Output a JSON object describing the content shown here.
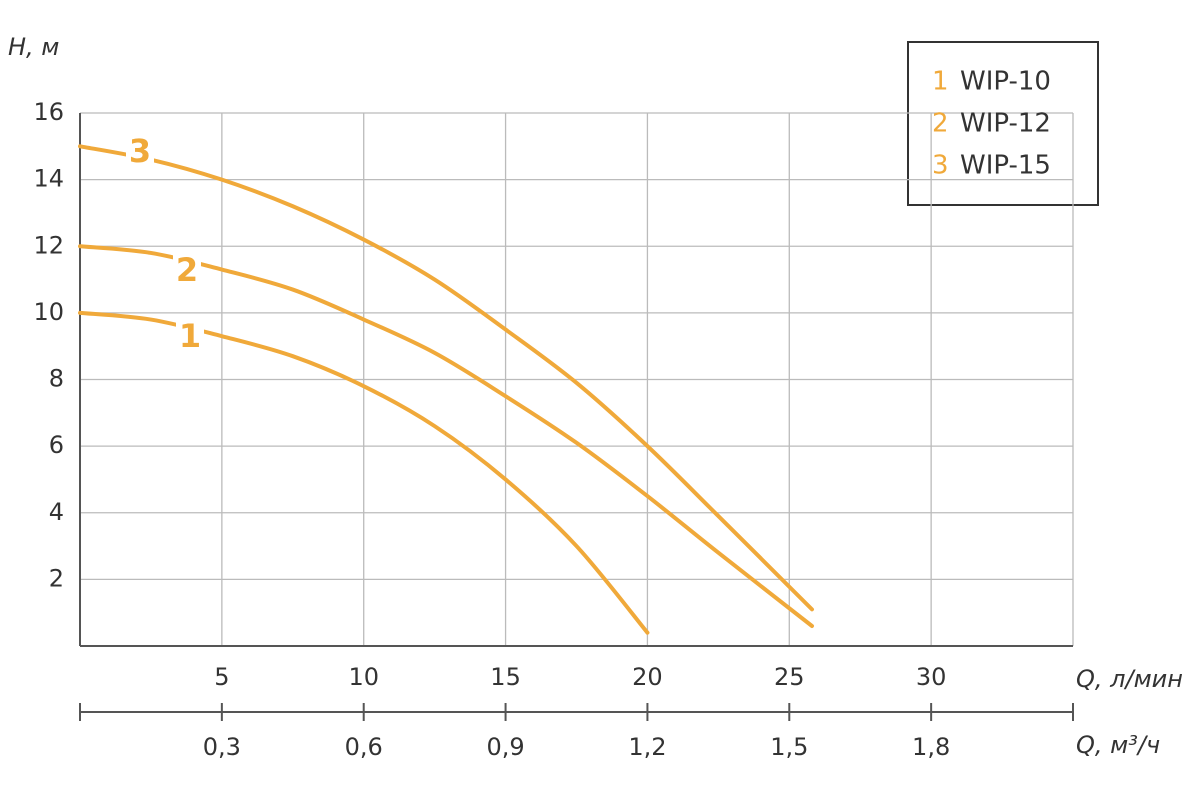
{
  "chart_data": {
    "type": "line",
    "y_label": "H, м",
    "x_label": "Q, л/мин",
    "x2_label": "Q, м³/ч",
    "xlim": [
      0,
      35
    ],
    "xticks": [
      5,
      10,
      15,
      20,
      25,
      30
    ],
    "x2lim": [
      0,
      2.1
    ],
    "x2ticks": [
      {
        "value": 0.3,
        "label": "0,3"
      },
      {
        "value": 0.6,
        "label": "0,6"
      },
      {
        "value": 0.9,
        "label": "0,9"
      },
      {
        "value": 1.2,
        "label": "1,2"
      },
      {
        "value": 1.5,
        "label": "1,5"
      },
      {
        "value": 1.8,
        "label": "1,8"
      }
    ],
    "ylim": [
      0,
      16
    ],
    "yticks": [
      2,
      4,
      6,
      8,
      10,
      12,
      14,
      16
    ],
    "grid": true,
    "legend": "top-right",
    "series": [
      {
        "label": "1",
        "name": "WIP-10",
        "color": "#f0a93a",
        "x": [
          0,
          2.5,
          5,
          7.5,
          10,
          12.5,
          15,
          17.5,
          20
        ],
        "values": [
          10,
          9.8,
          9.3,
          8.7,
          7.8,
          6.6,
          5.0,
          3.0,
          0.4
        ]
      },
      {
        "label": "2",
        "name": "WIP-12",
        "color": "#f0a93a",
        "x": [
          0,
          2.5,
          5,
          7.5,
          10,
          12.5,
          15,
          17.5,
          20,
          22.5,
          25.8
        ],
        "values": [
          12,
          11.8,
          11.3,
          10.7,
          9.8,
          8.8,
          7.5,
          6.1,
          4.5,
          2.8,
          0.6
        ]
      },
      {
        "label": "3",
        "name": "WIP-15",
        "color": "#f0a93a",
        "x": [
          0,
          2.5,
          5,
          7.5,
          10,
          12.5,
          15,
          17.5,
          20,
          22.5,
          25.8
        ],
        "values": [
          15,
          14.6,
          14,
          13.2,
          12.2,
          11.0,
          9.5,
          7.9,
          6.0,
          3.9,
          1.1
        ]
      }
    ]
  }
}
